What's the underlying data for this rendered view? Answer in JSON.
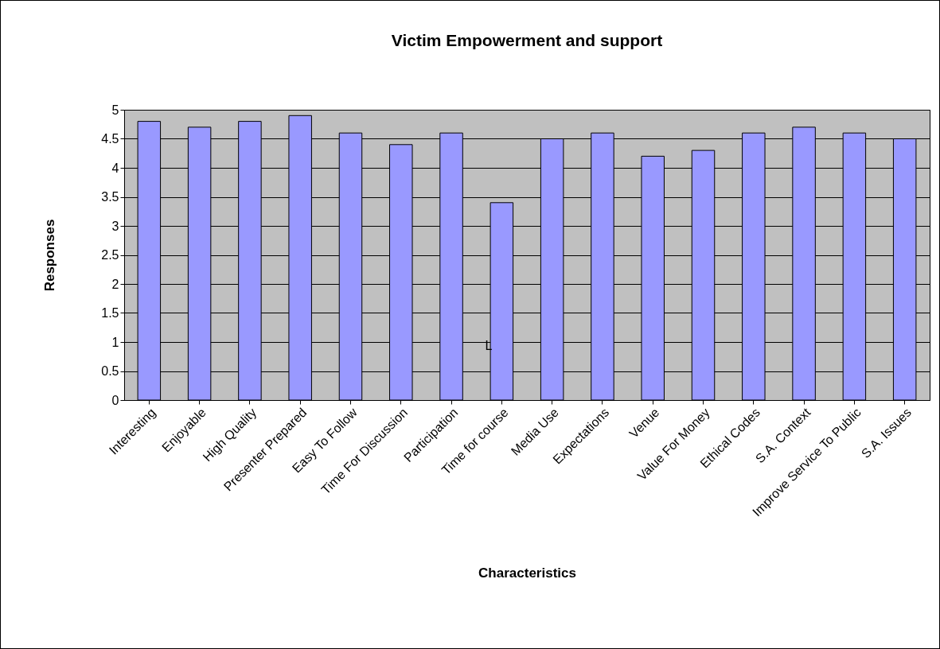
{
  "chart_data": {
    "type": "bar",
    "title": "Victim Empowerment and support",
    "xlabel": "Characteristics",
    "ylabel": "Responses",
    "categories": [
      "Interesting",
      "Enjoyable",
      "High Quality",
      "Presenter Prepared",
      "Easy To Follow",
      "Time For Discussion",
      "Participation",
      "Time for course",
      "Media Use",
      "Expectations",
      "Venue",
      "Value For Money",
      "Ethical Codes",
      "S.A. Context",
      "Improve Service To Public",
      "S.A. Issues"
    ],
    "values": [
      4.8,
      4.7,
      4.8,
      4.9,
      4.6,
      4.4,
      4.6,
      3.4,
      4.5,
      4.6,
      4.2,
      4.3,
      4.6,
      4.7,
      4.6,
      4.5
    ],
    "color": "#9999ff",
    "ylim": [
      0,
      5
    ],
    "yticks": [
      0,
      0.5,
      1,
      1.5,
      2,
      2.5,
      3,
      3.5,
      4,
      4.5,
      5
    ],
    "grid": "y",
    "annotations": [
      "L"
    ]
  }
}
